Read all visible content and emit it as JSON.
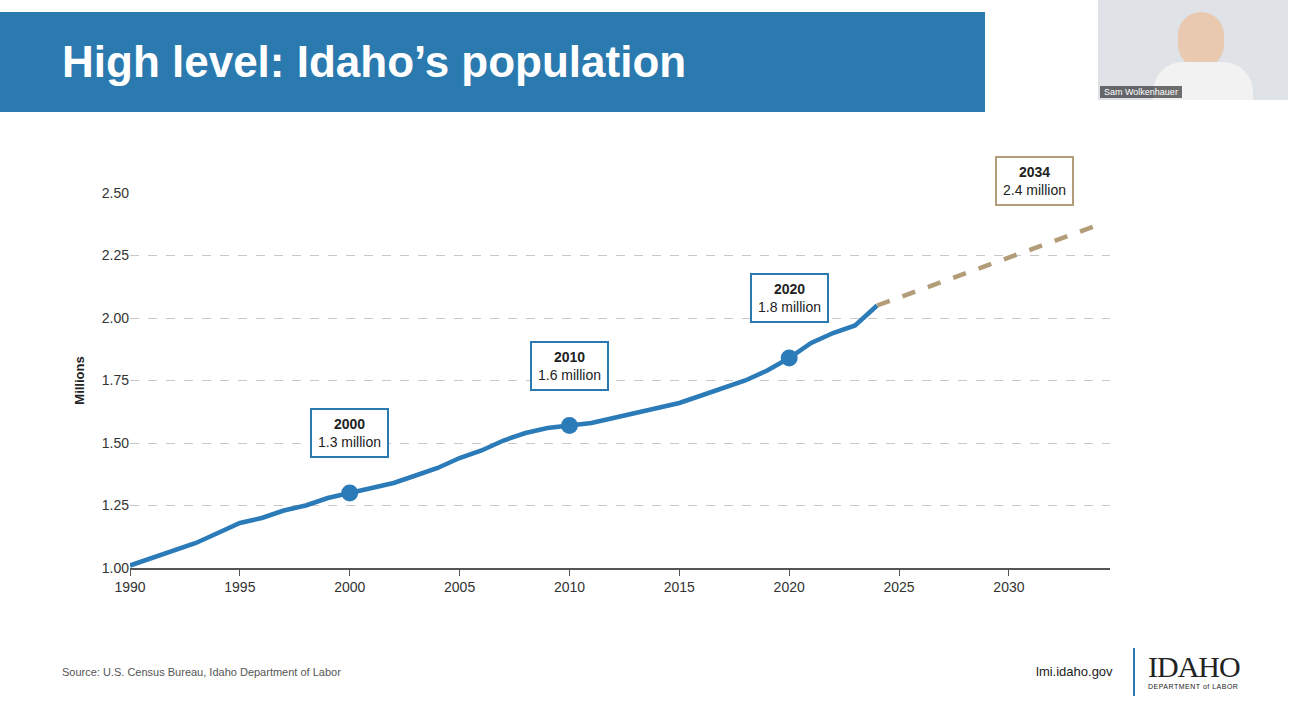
{
  "page": {
    "presenter": "Sam Wolkenhauer",
    "source": "Source: U.S. Census Bureau, Idaho Department of Labor",
    "website": "lmi.idaho.gov",
    "logo": [
      "IDAHO",
      "DEPARTMENT of LABOR"
    ]
  },
  "chart_data": {
    "type": "line",
    "title": "High level: Idaho’s population",
    "y_label": "Millions",
    "series": [
      {
        "x": [
          1990,
          1991,
          1992,
          1993,
          1994,
          1995,
          1996,
          1997,
          1998,
          1999,
          2000,
          2001,
          2002,
          2003,
          2004,
          2005,
          2006,
          2007,
          2008,
          2009,
          2010,
          2011,
          2012,
          2013,
          2014,
          2015,
          2016,
          2017,
          2018,
          2019,
          2020,
          2021,
          2022,
          2023,
          2024
        ],
        "values": [
          1.01,
          1.04,
          1.07,
          1.1,
          1.14,
          1.18,
          1.2,
          1.23,
          1.25,
          1.28,
          1.3,
          1.32,
          1.34,
          1.37,
          1.4,
          1.44,
          1.47,
          1.51,
          1.54,
          1.56,
          1.57,
          1.58,
          1.6,
          1.62,
          1.64,
          1.66,
          1.69,
          1.72,
          1.75,
          1.79,
          1.84,
          1.9,
          1.94,
          1.97,
          2.05
        ],
        "color": "#2b7bb9",
        "line_style": "solid"
      },
      {
        "x": [
          2024,
          2034
        ],
        "values": [
          2.05,
          2.37
        ],
        "color": "#b39d78",
        "line_style": "dashed"
      },
      {
        "type": "scatter",
        "marker": "circle",
        "x": [
          2000,
          2010,
          2020
        ],
        "values": [
          1.3,
          1.57,
          1.84
        ],
        "color": "#2b7bb9"
      }
    ],
    "annotations": [
      {
        "x": 2000,
        "y": 1.3,
        "text": [
          "2000",
          "1.3 million"
        ]
      },
      {
        "x": 2010,
        "y": 1.57,
        "text": [
          "2010",
          "1.6 million"
        ]
      },
      {
        "x": 2020,
        "y": 1.84,
        "text": [
          "2020",
          "1.8 million"
        ]
      },
      {
        "x": 2034,
        "y": 2.37,
        "text": [
          "2034",
          "2.4 million"
        ]
      }
    ],
    "xlim": [
      1990,
      2034.6
    ],
    "xticks": [
      1990,
      1995,
      2000,
      2005,
      2010,
      2015,
      2020,
      2025,
      2030
    ],
    "ylim": [
      1,
      2.5
    ],
    "yticks": [
      {
        "value": 1,
        "label": "1.00"
      },
      {
        "value": 1.25,
        "label": "1.25"
      },
      {
        "value": 1.5,
        "label": "1.50"
      },
      {
        "value": 1.75,
        "label": "1.75"
      },
      {
        "value": 2,
        "label": "2.00"
      },
      {
        "value": 2.25,
        "label": "2.25"
      },
      {
        "value": 2.5,
        "label": "2.50"
      }
    ],
    "grid": true
  }
}
